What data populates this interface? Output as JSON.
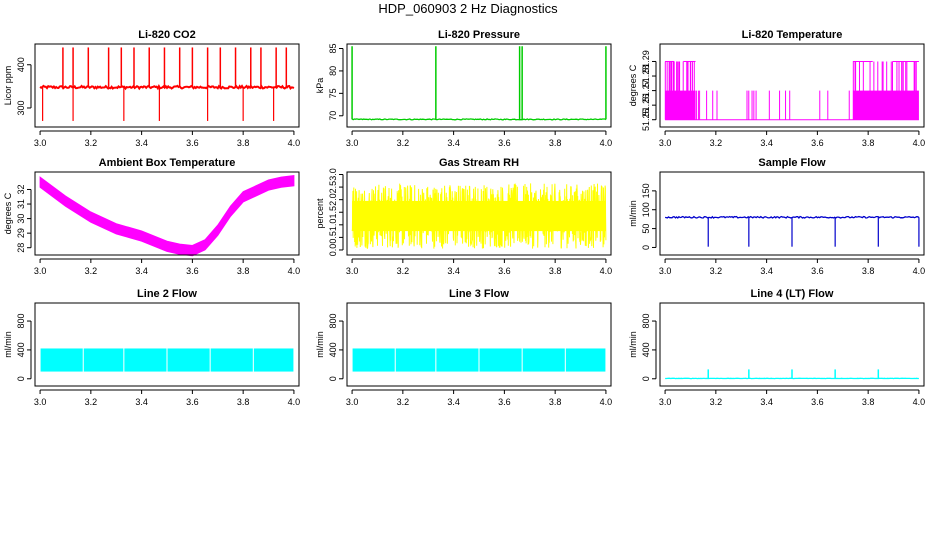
{
  "title": "HDP_060903  2 Hz Diagnostics",
  "chart_data": [
    {
      "type": "line",
      "title": "Li-820 CO2",
      "ylabel": "Licor ppm",
      "color": "#ff0000",
      "x_range": [
        3.0,
        4.0
      ],
      "xlim": [
        2.98,
        4.02
      ],
      "ylim": [
        256,
        448
      ],
      "x_ticks": [
        3.0,
        3.2,
        3.4,
        3.6,
        3.8,
        4.0
      ],
      "x_tick_labels": [
        "3.0",
        "3.2",
        "3.4",
        "3.6",
        "3.8",
        "4.0"
      ],
      "y_ticks": [
        300,
        400
      ],
      "y_tick_labels": [
        "300",
        "400"
      ],
      "baseline": 348,
      "noise": 3,
      "spikes_up": [
        3.09,
        3.13,
        3.19,
        3.27,
        3.32,
        3.37,
        3.43,
        3.49,
        3.55,
        3.6,
        3.66,
        3.71,
        3.77,
        3.83,
        3.87,
        3.93,
        3.97
      ],
      "spike_up_value": 440,
      "spikes_down": [
        3.01,
        3.13,
        3.33,
        3.47,
        3.66,
        3.8,
        3.92
      ],
      "spike_down_value": 270
    },
    {
      "type": "line",
      "title": "Li-820 Pressure",
      "ylabel": "kPa",
      "color": "#00cc00",
      "x_range": [
        3.0,
        4.0
      ],
      "xlim": [
        2.98,
        4.02
      ],
      "ylim": [
        67.5,
        86
      ],
      "x_ticks": [
        3.0,
        3.2,
        3.4,
        3.6,
        3.8,
        4.0
      ],
      "x_tick_labels": [
        "3.0",
        "3.2",
        "3.4",
        "3.6",
        "3.8",
        "4.0"
      ],
      "y_ticks": [
        70,
        75,
        80,
        85
      ],
      "y_tick_labels": [
        "70",
        "75",
        "80",
        "85"
      ],
      "baseline": 69.2,
      "noise": 0.1,
      "spikes_up": [
        3.0,
        3.33,
        3.66,
        3.67,
        4.0
      ],
      "spike_up_value": 85.5,
      "spikes_down": [],
      "spike_down_value": 69
    },
    {
      "type": "line",
      "title": "Li-820 Temperature",
      "ylabel": "degrees C",
      "color": "#ff00ff",
      "x_range": [
        3.0,
        4.0
      ],
      "xlim": [
        2.98,
        4.02
      ],
      "ylim": [
        51.245,
        51.302
      ],
      "x_ticks": [
        3.0,
        3.2,
        3.4,
        3.6,
        3.8,
        4.0
      ],
      "x_tick_labels": [
        "3.0",
        "3.2",
        "3.4",
        "3.6",
        "3.8",
        "4.0"
      ],
      "y_ticks": [
        51.25,
        51.26,
        51.27,
        51.28,
        51.29
      ],
      "y_tick_labels": [
        "51.25",
        "51.26",
        "51.27",
        "51.28",
        "51.29"
      ],
      "levels": [
        51.25,
        51.27,
        51.29
      ],
      "dense_ranges": [
        [
          3.0,
          3.12
        ],
        [
          3.74,
          4.0
        ]
      ]
    },
    {
      "type": "line",
      "title": "Ambient Box Temperature",
      "ylabel": "degrees C",
      "color": "#ff00ff",
      "x_range": [
        3.0,
        4.0
      ],
      "xlim": [
        2.98,
        4.02
      ],
      "ylim": [
        27.5,
        33.2
      ],
      "x_ticks": [
        3.0,
        3.2,
        3.4,
        3.6,
        3.8,
        4.0
      ],
      "x_tick_labels": [
        "3.0",
        "3.2",
        "3.4",
        "3.6",
        "3.8",
        "4.0"
      ],
      "y_ticks": [
        28,
        29,
        30,
        31,
        32
      ],
      "y_tick_labels": [
        "28",
        "29",
        "30",
        "31",
        "32"
      ],
      "x": [
        3.0,
        3.1,
        3.2,
        3.3,
        3.4,
        3.5,
        3.55,
        3.6,
        3.65,
        3.7,
        3.75,
        3.8,
        3.9,
        3.95,
        4.0
      ],
      "y": [
        32.5,
        31.2,
        30.1,
        29.3,
        28.8,
        28.1,
        27.9,
        27.8,
        28.2,
        29.2,
        30.5,
        31.5,
        32.3,
        32.5,
        32.6
      ],
      "band": 0.35
    },
    {
      "type": "line",
      "title": "Gas Stream RH",
      "ylabel": "percent",
      "color": "#ffff00",
      "x_range": [
        3.0,
        4.0
      ],
      "xlim": [
        2.98,
        4.02
      ],
      "ylim": [
        -0.2,
        3.1
      ],
      "x_ticks": [
        3.0,
        3.2,
        3.4,
        3.6,
        3.8,
        4.0
      ],
      "x_tick_labels": [
        "3.0",
        "3.2",
        "3.4",
        "3.6",
        "3.8",
        "4.0"
      ],
      "y_ticks": [
        0.0,
        0.5,
        1.0,
        1.5,
        2.0,
        2.5,
        3.0
      ],
      "y_tick_labels": [
        "0.0",
        "0.5",
        "1.0",
        "1.5",
        "2.0",
        "2.5",
        "3.0"
      ],
      "baseline": 1.35,
      "noise": 1.3
    },
    {
      "type": "line",
      "title": "Sample Flow",
      "ylabel": "ml/min",
      "color": "#0000cc",
      "x_range": [
        3.0,
        4.0
      ],
      "xlim": [
        2.98,
        4.02
      ],
      "ylim": [
        -20,
        200
      ],
      "x_ticks": [
        3.0,
        3.2,
        3.4,
        3.6,
        3.8,
        4.0
      ],
      "x_tick_labels": [
        "3.0",
        "3.2",
        "3.4",
        "3.6",
        "3.8",
        "4.0"
      ],
      "y_ticks": [
        0,
        50,
        100,
        150
      ],
      "y_tick_labels": [
        "0",
        "50",
        "100",
        "150"
      ],
      "baseline": 80,
      "noise": 2,
      "spikes_up": [],
      "spike_up_value": 80,
      "spikes_down": [
        3.17,
        3.33,
        3.5,
        3.67,
        3.84,
        4.0
      ],
      "spike_down_value": 2
    },
    {
      "type": "line",
      "title": "Line 2 Flow",
      "ylabel": "ml/min",
      "color": "#00ffff",
      "x_range": [
        3.0,
        4.0
      ],
      "xlim": [
        2.98,
        4.02
      ],
      "ylim": [
        -100,
        1050
      ],
      "x_ticks": [
        3.0,
        3.2,
        3.4,
        3.6,
        3.8,
        4.0
      ],
      "x_tick_labels": [
        "3.0",
        "3.2",
        "3.4",
        "3.6",
        "3.8",
        "4.0"
      ],
      "y_ticks": [
        0,
        400,
        800
      ],
      "y_tick_labels": [
        "0",
        "400",
        "800"
      ],
      "band_low": 100,
      "band_high": 420,
      "gaps": [
        3.17,
        3.33,
        3.5,
        3.67,
        3.84
      ]
    },
    {
      "type": "line",
      "title": "Line 3 Flow",
      "ylabel": "ml/min",
      "color": "#00ffff",
      "x_range": [
        3.0,
        4.0
      ],
      "xlim": [
        2.98,
        4.02
      ],
      "ylim": [
        -100,
        1050
      ],
      "x_ticks": [
        3.0,
        3.2,
        3.4,
        3.6,
        3.8,
        4.0
      ],
      "x_tick_labels": [
        "3.0",
        "3.2",
        "3.4",
        "3.6",
        "3.8",
        "4.0"
      ],
      "y_ticks": [
        0,
        400,
        800
      ],
      "y_tick_labels": [
        "0",
        "400",
        "800"
      ],
      "band_low": 100,
      "band_high": 420,
      "gaps": [
        3.17,
        3.33,
        3.5,
        3.67,
        3.84
      ]
    },
    {
      "type": "line",
      "title": "Line 4 (LT) Flow",
      "ylabel": "ml/min",
      "color": "#00ffff",
      "x_range": [
        3.0,
        4.0
      ],
      "xlim": [
        2.98,
        4.02
      ],
      "ylim": [
        -100,
        1050
      ],
      "x_ticks": [
        3.0,
        3.2,
        3.4,
        3.6,
        3.8,
        4.0
      ],
      "x_tick_labels": [
        "3.0",
        "3.2",
        "3.4",
        "3.6",
        "3.8",
        "4.0"
      ],
      "y_ticks": [
        0,
        400,
        800
      ],
      "y_tick_labels": [
        "0",
        "400",
        "800"
      ],
      "baseline": 5,
      "noise": 2,
      "spikes_up": [
        3.17,
        3.33,
        3.5,
        3.67,
        3.84
      ],
      "spike_up_value": 130,
      "spikes_down": [],
      "spike_down_value": 0
    }
  ]
}
